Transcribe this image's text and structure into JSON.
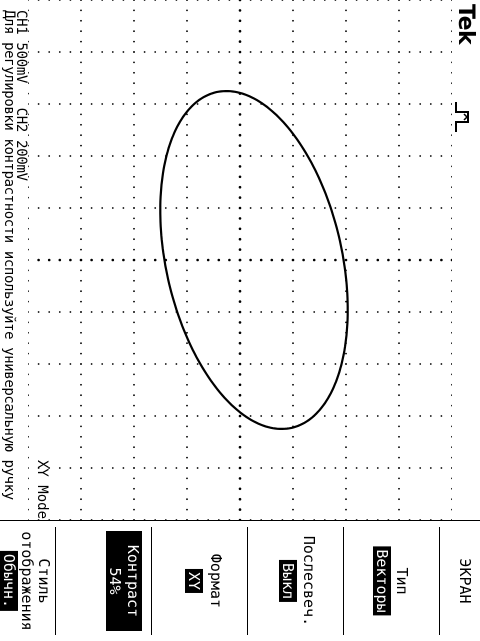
{
  "header": {
    "brand": "Tek"
  },
  "trace": {
    "style": "ellipse"
  },
  "status": {
    "ch1": "CH1 500mV",
    "ch2": "CH2 200mV",
    "mode": "XY Mode"
  },
  "hint": "Для регулировки контрастности используйте универсальную ручку",
  "menu": {
    "title": "ЭКРАН",
    "items": [
      {
        "label": "Тип",
        "value": "Векторы"
      },
      {
        "label": "Послесвеч.",
        "value": "Выкл"
      },
      {
        "label": "Формат",
        "value": "XY"
      },
      {
        "label": "Контраст",
        "value": "54%"
      },
      {
        "label": "Стиль отображения",
        "value": "Обычн."
      }
    ]
  }
}
